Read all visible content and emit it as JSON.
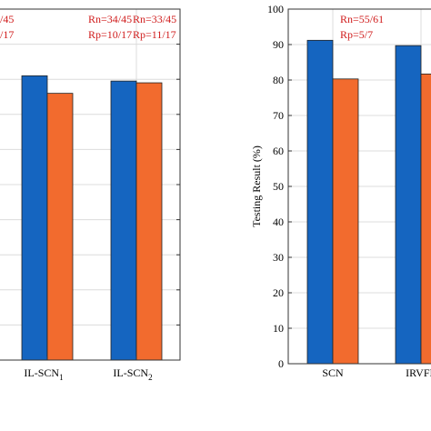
{
  "chart_data": [
    {
      "type": "bar",
      "categories": [
        "IL-SCN",
        "IL-SCN"
      ],
      "category_subscripts": [
        "1",
        "2"
      ],
      "series": [
        {
          "values": [
            81,
            79.5
          ],
          "color": "#1565c0"
        },
        {
          "values": [
            76,
            79
          ],
          "color": "#f26b2e"
        }
      ],
      "ylim": [
        0,
        100
      ],
      "grid": true,
      "annotations": [
        {
          "category_index": -1,
          "lines": [
            "/45",
            "/17"
          ]
        },
        {
          "category_index": 0,
          "lines": [
            "Rn=34/45",
            "Rp=10/17"
          ]
        },
        {
          "category_index": 1,
          "lines": [
            "Rn=33/45",
            "Rp=11/17"
          ]
        }
      ]
    },
    {
      "type": "bar",
      "categories": [
        "SCN",
        "IRVFL"
      ],
      "series": [
        {
          "values": [
            91.2,
            89.7
          ],
          "color": "#1565c0"
        },
        {
          "values": [
            80.3,
            81.7
          ],
          "color": "#f26b2e"
        }
      ],
      "ylabel": "Testing Result (%)",
      "ylim": [
        0,
        100
      ],
      "yticks": [
        0,
        10,
        20,
        30,
        40,
        50,
        60,
        70,
        80,
        90,
        100
      ],
      "grid": true,
      "annotations": [
        {
          "category_index": 0,
          "lines": [
            "Rn=55/61",
            "Rp=5/7"
          ]
        }
      ]
    }
  ]
}
